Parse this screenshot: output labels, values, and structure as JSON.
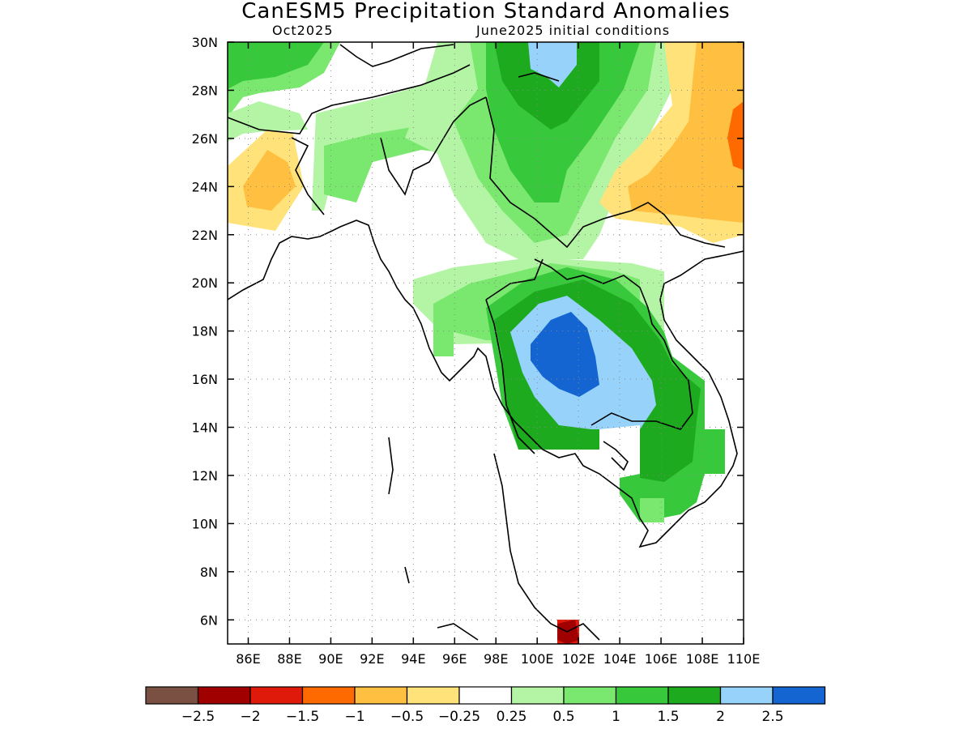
{
  "title": "CanESM5 Precipitation Standard Anomalies",
  "subtitle_left": "Oct2025",
  "subtitle_right": "June2025 initial conditions",
  "map": {
    "region": "Southeast Asia / mainland Indochina",
    "lon_range": [
      85,
      110
    ],
    "lat_range": [
      5,
      30
    ],
    "lon_ticks": [
      "86E",
      "88E",
      "90E",
      "92E",
      "94E",
      "96E",
      "98E",
      "100E",
      "102E",
      "104E",
      "106E",
      "108E",
      "110E"
    ],
    "lat_ticks": [
      "6N",
      "8N",
      "10N",
      "12N",
      "14N",
      "16N",
      "18N",
      "20N",
      "22N",
      "24N",
      "26N",
      "28N",
      "30N"
    ],
    "grid": "dotted"
  },
  "colorbar": {
    "colors": [
      "#7a5043",
      "#a00000",
      "#e01a0a",
      "#ff6a00",
      "#ffbf40",
      "#ffe37a",
      "#ffffff",
      "#b3f5a5",
      "#7ae86e",
      "#37c83c",
      "#1eaa1e",
      "#96d2fa",
      "#1464d2"
    ],
    "labels": [
      "-2.5",
      "-2",
      "-1.5",
      "-1",
      "-0.5",
      "-0.25",
      "0.25",
      "0.5",
      "1",
      "1.5",
      "2",
      "2.5"
    ]
  }
}
